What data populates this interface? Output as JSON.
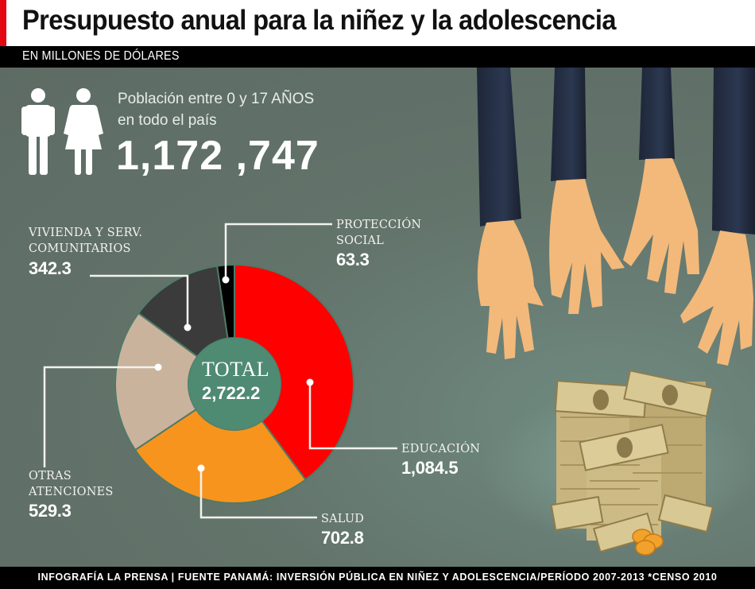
{
  "header": {
    "title": "Presupuesto anual para la niñez y la adolescencia",
    "subtitle": "EN MILLONES DE DÓLARES"
  },
  "population": {
    "label_line1": "Población entre 0 y 17 AÑOS",
    "label_line2": "en todo el país",
    "value": "1,172 ,747",
    "icons": [
      "male-person-icon",
      "female-person-icon"
    ]
  },
  "chart_data": {
    "type": "pie",
    "title": "Presupuesto anual para la niñez y la adolescencia",
    "subtitle": "En millones de dólares",
    "donut": true,
    "center_label": "TOTAL",
    "center_value": "2,722.2",
    "total": 2722.2,
    "categories": [
      "Educación",
      "Salud",
      "Otras atenciones",
      "Vivienda y serv. comunitarios",
      "Protección social"
    ],
    "values": [
      1084.5,
      702.8,
      529.3,
      342.3,
      63.3
    ],
    "colors": [
      "#ff0000",
      "#f7941d",
      "#c9b39c",
      "#3b3b3b",
      "#000000"
    ],
    "legend": "leader-line labels around chart"
  },
  "slices": [
    {
      "label_line1": "EDUCACIÓN",
      "label_line2": "",
      "value": "1,084.5",
      "color": "#ff0000"
    },
    {
      "label_line1": "SALUD",
      "label_line2": "",
      "value": "702.8",
      "color": "#f7941d"
    },
    {
      "label_line1": "OTRAS",
      "label_line2": "ATENCIONES",
      "value": "529.3",
      "color": "#c9b39c"
    },
    {
      "label_line1": "VIVIENDA Y SERV.",
      "label_line2": "COMUNITARIOS",
      "value": "342.3",
      "color": "#3b3b3b"
    },
    {
      "label_line1": "PROTECCIÓN",
      "label_line2": "SOCIAL",
      "value": "63.3",
      "color": "#000000"
    }
  ],
  "center": {
    "label": "TOTAL",
    "value": "2,722.2"
  },
  "footer": {
    "source": "INFOGRAFÍA LA PRENSA | FUENTE PANAMÁ: INVERSIÓN PÚBLICA EN NIÑEZ Y ADOLESCENCIA/PERÍODO 2007-2013 *CENSO 2010"
  },
  "colors": {
    "background": "#5f6e66",
    "accent_red": "#e30613",
    "center_disc": "#4f8a73"
  }
}
